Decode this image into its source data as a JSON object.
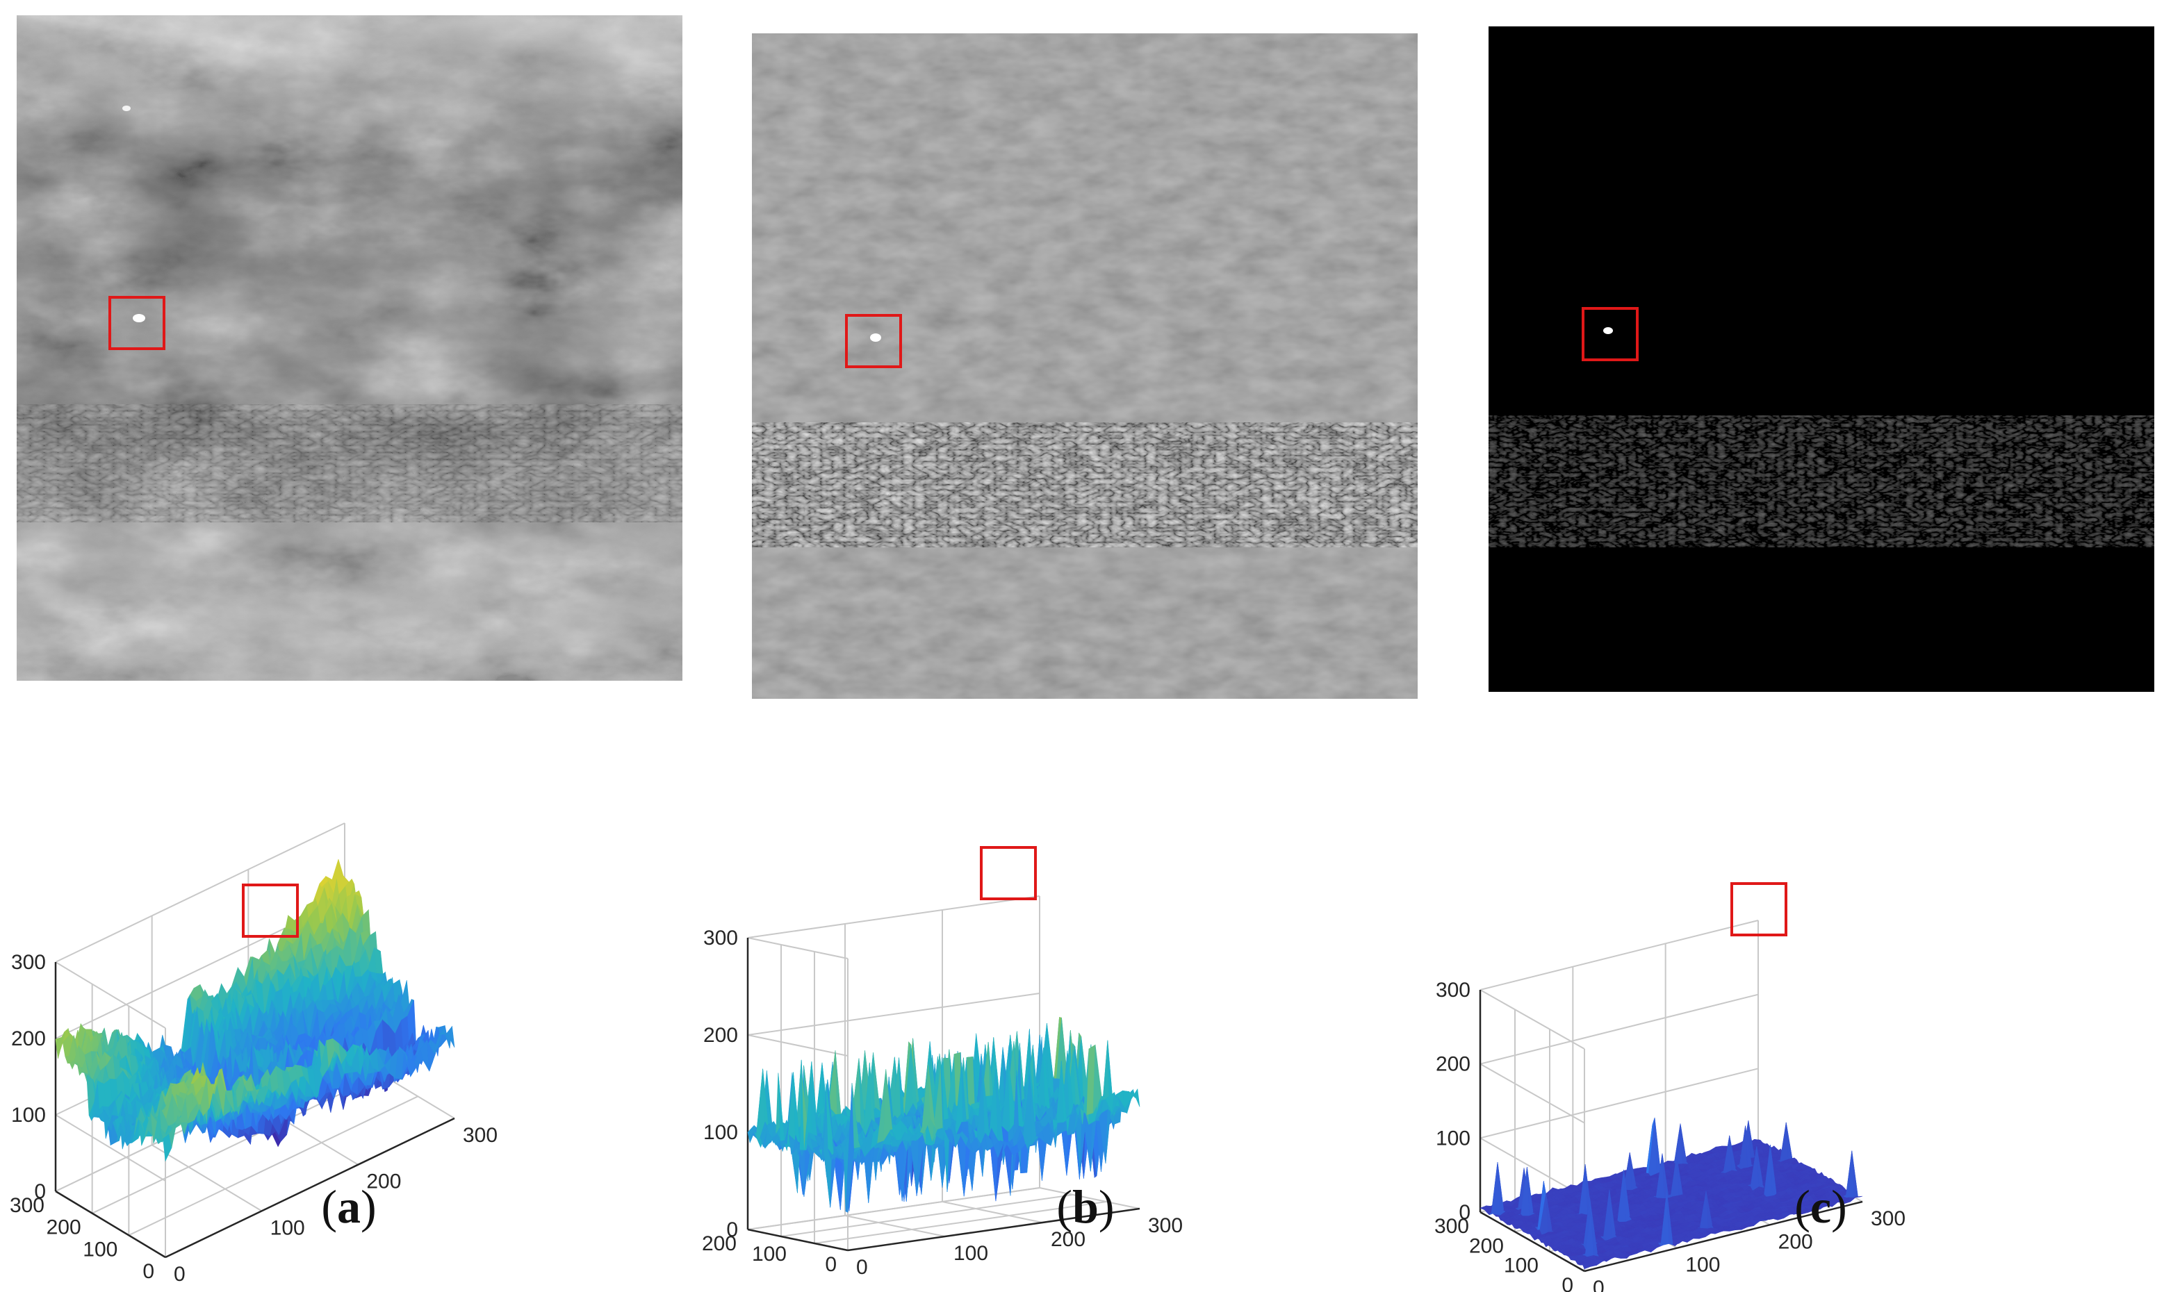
{
  "figure": {
    "panels": [
      {
        "id": "a",
        "caption_letter": "a",
        "image_kind": "raw-infrared-scene",
        "surface_colormap": "parula-high-variation",
        "z_ticks": [
          "300",
          "200",
          "100",
          "0"
        ],
        "y_ticks": [
          "300",
          "200",
          "100",
          "0"
        ],
        "x_ticks": [
          "0",
          "100",
          "200",
          "300"
        ]
      },
      {
        "id": "b",
        "caption_letter": "b",
        "image_kind": "background-suppressed-gray",
        "surface_colormap": "parula-teal",
        "z_ticks": [
          "300",
          "200",
          "100",
          "0"
        ],
        "y_ticks": [
          "200",
          "100",
          "0"
        ],
        "x_ticks": [
          "0",
          "100",
          "200",
          "300"
        ]
      },
      {
        "id": "c",
        "caption_letter": "c",
        "image_kind": "target-enhanced-dark",
        "surface_colormap": "parula-blue-flat",
        "z_ticks": [
          "300",
          "200",
          "100",
          "0"
        ],
        "y_ticks": [
          "300",
          "200",
          "100",
          "0"
        ],
        "x_ticks": [
          "0",
          "100",
          "200",
          "300"
        ]
      }
    ],
    "colors": {
      "target_box": "#e01818",
      "axis_grid": "#c8c8c8",
      "parula_low": "#3e26a8",
      "parula_mid": "#21b3c6",
      "parula_high": "#f9d626"
    }
  }
}
